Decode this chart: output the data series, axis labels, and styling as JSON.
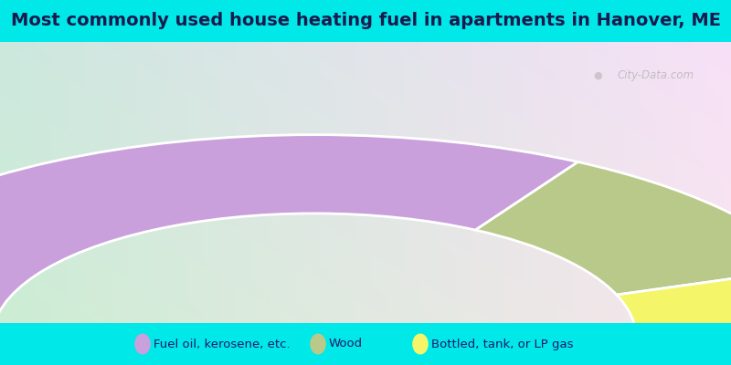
{
  "title": "Most commonly used house heating fuel in apartments in Hanover, ME",
  "segments": [
    {
      "label": "Fuel oil, kerosene, etc.",
      "value": 66.7,
      "color": "#c9a0dc"
    },
    {
      "label": "Wood",
      "value": 22.2,
      "color": "#b8c98a"
    },
    {
      "label": "Bottled, tank, or LP gas",
      "value": 11.1,
      "color": "#f5f56a"
    }
  ],
  "background_top": "#00e8e8",
  "title_color": "#1a1a4e",
  "legend_text_color": "#1a1a6e",
  "watermark": "City-Data.com",
  "title_fontsize": 14,
  "legend_fontsize": 9.5
}
